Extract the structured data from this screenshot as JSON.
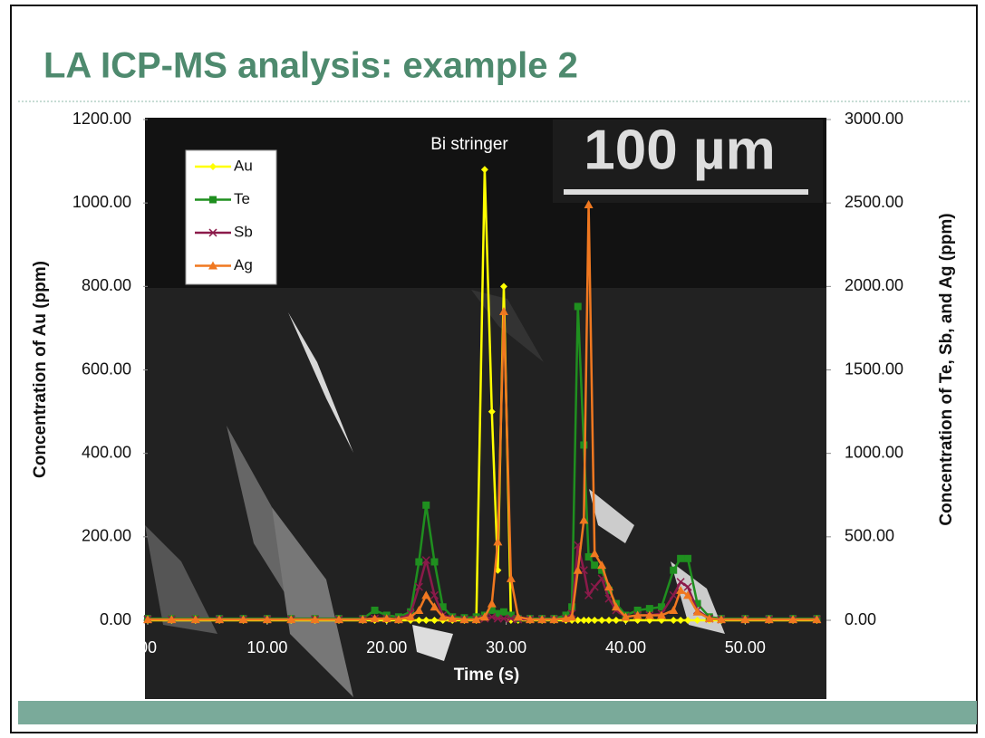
{
  "slide_title": "LA ICP-MS analysis: example 2",
  "chart_data": {
    "type": "line",
    "x_label": "Time (s)",
    "y_label": "Concentration of Au (ppm)",
    "y2_label": "Concentration of Te, Sb, and Ag (ppm)",
    "annotation": "Bi stringer",
    "scale_bar_label": "100 µm",
    "legend": "top-left",
    "xlim": [
      0,
      56.8
    ],
    "xticks": [
      {
        "value": 0,
        "label": "00"
      },
      {
        "value": 10,
        "label": "10.00"
      },
      {
        "value": 20,
        "label": "20.00"
      },
      {
        "value": 30,
        "label": "30.00"
      },
      {
        "value": 40,
        "label": "40.00"
      },
      {
        "value": 50,
        "label": "50.00"
      }
    ],
    "ylim": [
      0,
      1200
    ],
    "yticks": [
      {
        "value": 0,
        "label": "0.00"
      },
      {
        "value": 200,
        "label": "200.00"
      },
      {
        "value": 400,
        "label": "400.00"
      },
      {
        "value": 600,
        "label": "600.00"
      },
      {
        "value": 800,
        "label": "800.00"
      },
      {
        "value": 1000,
        "label": "1000.00"
      },
      {
        "value": 1200,
        "label": "1200.00"
      }
    ],
    "y2lim": [
      0,
      3000
    ],
    "y2ticks": [
      {
        "value": 0,
        "label": "0.00"
      },
      {
        "value": 500,
        "label": "500.00"
      },
      {
        "value": 1000,
        "label": "1000.00"
      },
      {
        "value": 1500,
        "label": "1500.00"
      },
      {
        "value": 2000,
        "label": "2000.00"
      },
      {
        "value": 2500,
        "label": "2500.00"
      },
      {
        "value": 3000,
        "label": "3000.00"
      }
    ],
    "x": [
      0,
      2,
      4,
      6,
      8,
      10,
      12,
      14,
      16,
      18,
      19,
      20,
      21,
      22,
      22.7,
      23.3,
      24,
      24.7,
      25.5,
      26.5,
      27.5,
      28.2,
      28.8,
      29.3,
      29.8,
      30.4,
      31,
      32,
      33,
      34,
      35,
      35.5,
      36,
      36.5,
      36.9,
      37.4,
      38,
      38.6,
      39.2,
      40,
      41,
      42,
      43,
      44,
      44.6,
      45.2,
      46,
      47,
      48,
      50,
      52,
      54,
      56
    ],
    "series": [
      {
        "name": "Au",
        "color": "#ffff00",
        "marker": "diamond",
        "axis": "y",
        "values": [
          0,
          0,
          0,
          0,
          0,
          0,
          0,
          0,
          0,
          0,
          0,
          0,
          0,
          0,
          0,
          0,
          0,
          0,
          0,
          0,
          0,
          1080,
          500,
          120,
          800,
          0,
          0,
          0,
          0,
          0,
          0,
          0,
          0,
          0,
          0,
          0,
          0,
          0,
          0,
          0,
          0,
          0,
          0,
          0,
          0,
          0,
          0,
          0,
          0,
          0,
          0,
          0,
          0
        ]
      },
      {
        "name": "Te",
        "color": "#1f8f1f",
        "marker": "square",
        "axis": "y2",
        "values": [
          10,
          10,
          10,
          10,
          10,
          10,
          10,
          10,
          10,
          10,
          60,
          30,
          20,
          50,
          350,
          690,
          350,
          80,
          20,
          15,
          20,
          30,
          60,
          40,
          50,
          30,
          10,
          10,
          10,
          10,
          30,
          80,
          1880,
          1050,
          380,
          330,
          300,
          180,
          100,
          30,
          60,
          70,
          80,
          300,
          370,
          370,
          100,
          20,
          10,
          10,
          10,
          10,
          10
        ]
      },
      {
        "name": "Sb",
        "color": "#8b1a4a",
        "marker": "cross",
        "axis": "y2",
        "values": [
          5,
          5,
          5,
          5,
          5,
          5,
          5,
          5,
          5,
          5,
          10,
          10,
          5,
          40,
          200,
          360,
          150,
          30,
          10,
          5,
          5,
          10,
          20,
          10,
          10,
          10,
          5,
          5,
          5,
          5,
          10,
          40,
          450,
          300,
          150,
          200,
          250,
          130,
          60,
          20,
          30,
          30,
          40,
          150,
          230,
          200,
          60,
          10,
          5,
          5,
          5,
          5,
          5
        ]
      },
      {
        "name": "Ag",
        "color": "#f07820",
        "marker": "triangle",
        "axis": "y2",
        "values": [
          5,
          5,
          5,
          5,
          5,
          5,
          5,
          5,
          5,
          5,
          10,
          10,
          5,
          20,
          60,
          150,
          80,
          20,
          10,
          5,
          5,
          20,
          100,
          470,
          1850,
          250,
          20,
          5,
          5,
          5,
          10,
          20,
          300,
          600,
          2490,
          400,
          330,
          200,
          80,
          20,
          30,
          30,
          30,
          60,
          180,
          150,
          50,
          10,
          5,
          5,
          5,
          5,
          5
        ]
      }
    ]
  }
}
